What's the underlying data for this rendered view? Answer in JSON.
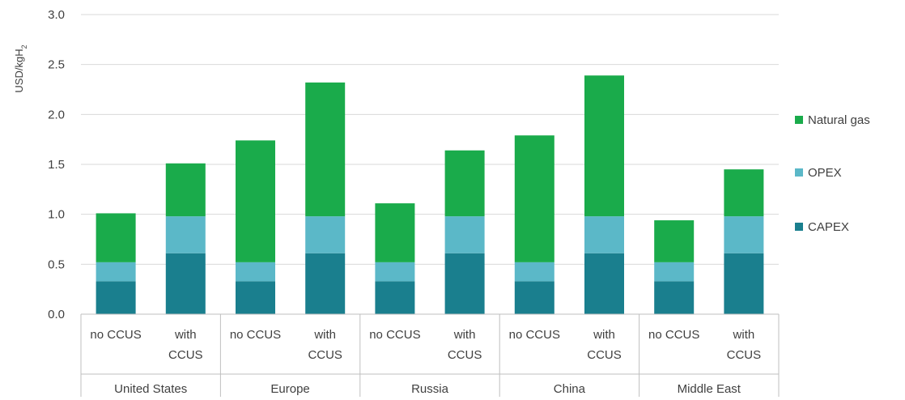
{
  "chart_data": {
    "type": "bar",
    "stacked": true,
    "ylabel": "USD/kgH",
    "ylabel_subscript": "2",
    "ylim": [
      0,
      3.0
    ],
    "yticks": [
      "0.0",
      "0.5",
      "1.0",
      "1.5",
      "2.0",
      "2.5",
      "3.0"
    ],
    "grid": true,
    "legend_position": "right",
    "groups": [
      "United States",
      "Europe",
      "Russia",
      "China",
      "Middle East"
    ],
    "categories": [
      "no CCUS",
      "with CCUS",
      "no CCUS",
      "with CCUS",
      "no CCUS",
      "with CCUS",
      "no CCUS",
      "with CCUS",
      "no CCUS",
      "with CCUS"
    ],
    "category_lines": [
      [
        "no CCUS"
      ],
      [
        "with",
        "CCUS"
      ],
      [
        "no CCUS"
      ],
      [
        "with",
        "CCUS"
      ],
      [
        "no CCUS"
      ],
      [
        "with",
        "CCUS"
      ],
      [
        "no CCUS"
      ],
      [
        "with",
        "CCUS"
      ],
      [
        "no CCUS"
      ],
      [
        "with",
        "CCUS"
      ]
    ],
    "series": [
      {
        "name": "CAPEX",
        "color": "#1a7f8e",
        "values": [
          0.33,
          0.61,
          0.33,
          0.61,
          0.33,
          0.61,
          0.33,
          0.61,
          0.33,
          0.61
        ]
      },
      {
        "name": "OPEX",
        "color": "#5bb8c8",
        "values": [
          0.19,
          0.37,
          0.19,
          0.37,
          0.19,
          0.37,
          0.19,
          0.37,
          0.19,
          0.37
        ]
      },
      {
        "name": "Natural gas",
        "color": "#1aab4b",
        "values": [
          0.49,
          0.53,
          1.22,
          1.34,
          0.59,
          0.66,
          1.27,
          1.41,
          0.42,
          0.47
        ]
      }
    ],
    "legend_order": [
      "Natural gas",
      "OPEX",
      "CAPEX"
    ]
  }
}
